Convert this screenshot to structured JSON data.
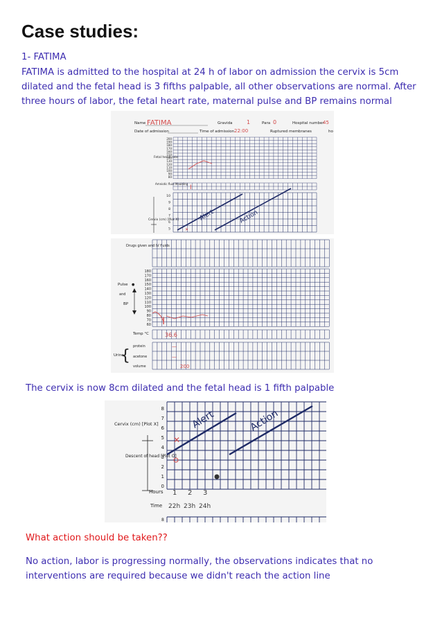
{
  "page": {
    "title": "Case studies:",
    "case_heading": "1- FATIMA",
    "case_text": "FATIMA is admitted to the hospital at 24 h of labor on admission the cervix is 5cm dilated and the fetal head is 3 fifths palpable, all other observations are normal. After three hours of labor, the fetal heart rate, maternal pulse and BP remains normal",
    "progress_text": "The cervix is now 8cm dilated and the fetal head is 1 fifth palpable",
    "question": "What action should be taken??",
    "answer": "No action, labor is progressing normally, the observations indicates that no interventions are required because we didn't reach the action line"
  },
  "partograph": {
    "name_label": "Name",
    "name_value": "FATIMA",
    "gravida_label": "Gravida",
    "gravida_value": "1",
    "para_label": "Para",
    "para_value": "0",
    "hospital_label": "Hospital number",
    "hospital_value": "45",
    "date_label": "Date of admission",
    "time_label": "Time of admission",
    "time_value": "22:00",
    "ruptured_label": "Ruptured membranes",
    "ruptured_value": "ho",
    "fhr_label": "Fetal heart rate",
    "fhr_ticks": [
      "200",
      "190",
      "180",
      "170",
      "160",
      "150",
      "140",
      "130",
      "120",
      "110",
      "100",
      "90",
      "80"
    ],
    "amniotic_label": "Amniotic fluid Moulding",
    "amniotic_value": "I",
    "cervix_label": "Cervix (cm) [Plot X]",
    "cervix_ticks": [
      "10",
      "9",
      "8",
      "7",
      "6",
      "5"
    ],
    "alert_label": "Alert",
    "action_label": "Action",
    "drugs_label": "Drugs given and IV fluids",
    "pulse_label": "Pulse",
    "and_label": "and",
    "bp_label": "BP",
    "pulse_ticks": [
      "180",
      "170",
      "160",
      "150",
      "140",
      "130",
      "120",
      "110",
      "100",
      "90",
      "80",
      "70",
      "60"
    ],
    "temp_label": "Temp °C",
    "temp_value": "36.6",
    "urine_label": "Urine",
    "protein_label": "protein",
    "acetone_label": "acetone",
    "volume_label": "volume",
    "volume_value": "200",
    "dash": "—"
  },
  "zoom": {
    "cervix_label": "Cervix (cm) [Plot X]",
    "cervix_ticks": [
      "8",
      "7",
      "6",
      "5",
      "4",
      "3",
      "2",
      "1",
      "0"
    ],
    "descent_label": "Descent of head [Plot O]",
    "hours_label": "Hours",
    "time_label": "Time",
    "hours_values": [
      "1",
      "2",
      "3"
    ],
    "time_values": [
      "22h",
      "23h",
      "24h"
    ],
    "alert_label": "Alert",
    "action_label": "Action",
    "bottom_tick": "8"
  },
  "colors": {
    "text": "#3d2db0",
    "question": "#e0181b",
    "grid": "#1e2a66",
    "ink": "#d24a4a",
    "plot": "#555555"
  }
}
